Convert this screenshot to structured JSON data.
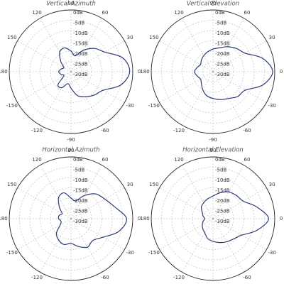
{
  "chart_data": [
    {
      "type": "polar",
      "title": "Vertical Azimuth",
      "x": [
        0,
        15,
        30,
        45,
        60,
        75,
        90,
        105,
        120,
        135,
        150,
        165,
        180,
        195,
        210,
        225,
        240,
        255,
        270,
        285,
        300,
        315,
        330,
        345
      ],
      "values": [
        -1.5,
        -4,
        -11,
        -14,
        -18,
        -22,
        -20,
        -18,
        -19,
        -23,
        -26,
        -25,
        -24,
        -25,
        -26,
        -21,
        -21,
        -24,
        -22,
        -18,
        -16,
        -14,
        -12,
        -5
      ],
      "color": "#2b3a78",
      "ylim": [
        -30,
        0
      ],
      "yticks": [
        {
          "value": 0,
          "label": "0dB"
        },
        {
          "value": -5,
          "label": "-5dB"
        },
        {
          "value": -10,
          "label": "-10dB"
        },
        {
          "value": -15,
          "label": "-15dB"
        },
        {
          "value": -20,
          "label": "-20dB"
        },
        {
          "value": -25,
          "label": "-25dB"
        },
        {
          "value": -30,
          "label": "-30dB"
        }
      ],
      "xticks": [
        0,
        30,
        60,
        90,
        120,
        150,
        180,
        -150,
        -120,
        -90,
        -60,
        -30
      ],
      "grid": true
    },
    {
      "type": "polar",
      "title": "Vertical Elevation",
      "x": [
        0,
        15,
        30,
        45,
        60,
        75,
        90,
        105,
        120,
        135,
        150,
        165,
        180,
        195,
        210,
        225,
        240,
        255,
        270,
        285,
        300,
        315,
        330,
        345
      ],
      "values": [
        -1,
        -5,
        -12,
        -14,
        -16,
        -18,
        -19,
        -20,
        -21,
        -22,
        -23,
        -22,
        -21,
        -22,
        -23,
        -22,
        -20,
        -18,
        -17,
        -16,
        -15,
        -13,
        -12,
        -5
      ],
      "color": "#2b3a78",
      "ylim": [
        -30,
        0
      ],
      "yticks": [
        {
          "value": 0,
          "label": "0dB"
        },
        {
          "value": -5,
          "label": "-5dB"
        },
        {
          "value": -10,
          "label": "-10dB"
        },
        {
          "value": -15,
          "label": "-15dB"
        },
        {
          "value": -20,
          "label": "-20dB"
        },
        {
          "value": -25,
          "label": "-25dB"
        },
        {
          "value": -30,
          "label": "-30dB"
        }
      ],
      "xticks": [
        0,
        30,
        60,
        90,
        120,
        150,
        180,
        -150,
        -120,
        -90,
        -60,
        -30
      ],
      "grid": true
    },
    {
      "type": "polar",
      "title": "Horizontal Azimuth",
      "x": [
        0,
        15,
        30,
        45,
        60,
        75,
        90,
        105,
        120,
        135,
        150,
        165,
        180,
        195,
        210,
        225,
        240,
        255,
        270,
        285,
        300,
        315,
        330,
        345
      ],
      "values": [
        -3,
        -8,
        -11,
        -13,
        -17,
        -21,
        -20,
        -17,
        -18,
        -22,
        -25,
        -24,
        -24,
        -25,
        -24,
        -20,
        -18,
        -17,
        -18,
        -16,
        -14,
        -15,
        -12,
        -6
      ],
      "color": "#2b3a78",
      "ylim": [
        -30,
        0
      ],
      "yticks": [
        {
          "value": 0,
          "label": "0dB"
        },
        {
          "value": -5,
          "label": "-5dB"
        },
        {
          "value": -10,
          "label": "-10dB"
        },
        {
          "value": -15,
          "label": "-15dB"
        },
        {
          "value": -20,
          "label": "-20dB"
        },
        {
          "value": -25,
          "label": "-25dB"
        },
        {
          "value": -30,
          "label": "-30dB"
        }
      ],
      "xticks": [
        0,
        30,
        60,
        90,
        120,
        150,
        180,
        -150,
        -120,
        -90,
        -60,
        -30
      ],
      "grid": true
    },
    {
      "type": "polar",
      "title": "Horizontal Elevation",
      "x": [
        0,
        15,
        30,
        45,
        60,
        75,
        90,
        105,
        120,
        135,
        150,
        165,
        180,
        195,
        210,
        225,
        240,
        255,
        270,
        285,
        300,
        315,
        330,
        345
      ],
      "values": [
        -3,
        -8,
        -13,
        -14,
        -15,
        -17,
        -19,
        -20,
        -21,
        -22,
        -24,
        -25,
        -26,
        -25,
        -24,
        -23,
        -22,
        -20,
        -19,
        -18,
        -17,
        -16,
        -14,
        -8
      ],
      "color": "#2b3a78",
      "ylim": [
        -30,
        0
      ],
      "yticks": [
        {
          "value": 0,
          "label": "0dB"
        },
        {
          "value": -5,
          "label": "-5dB"
        },
        {
          "value": -10,
          "label": "-10dB"
        },
        {
          "value": -15,
          "label": "-15dB"
        },
        {
          "value": -20,
          "label": "-20dB"
        },
        {
          "value": -25,
          "label": "-25dB"
        },
        {
          "value": -30,
          "label": "-30dB"
        }
      ],
      "xticks": [
        0,
        30,
        60,
        90,
        120,
        150,
        180,
        -150,
        -120,
        -90,
        -60,
        -30
      ],
      "grid": true
    }
  ]
}
